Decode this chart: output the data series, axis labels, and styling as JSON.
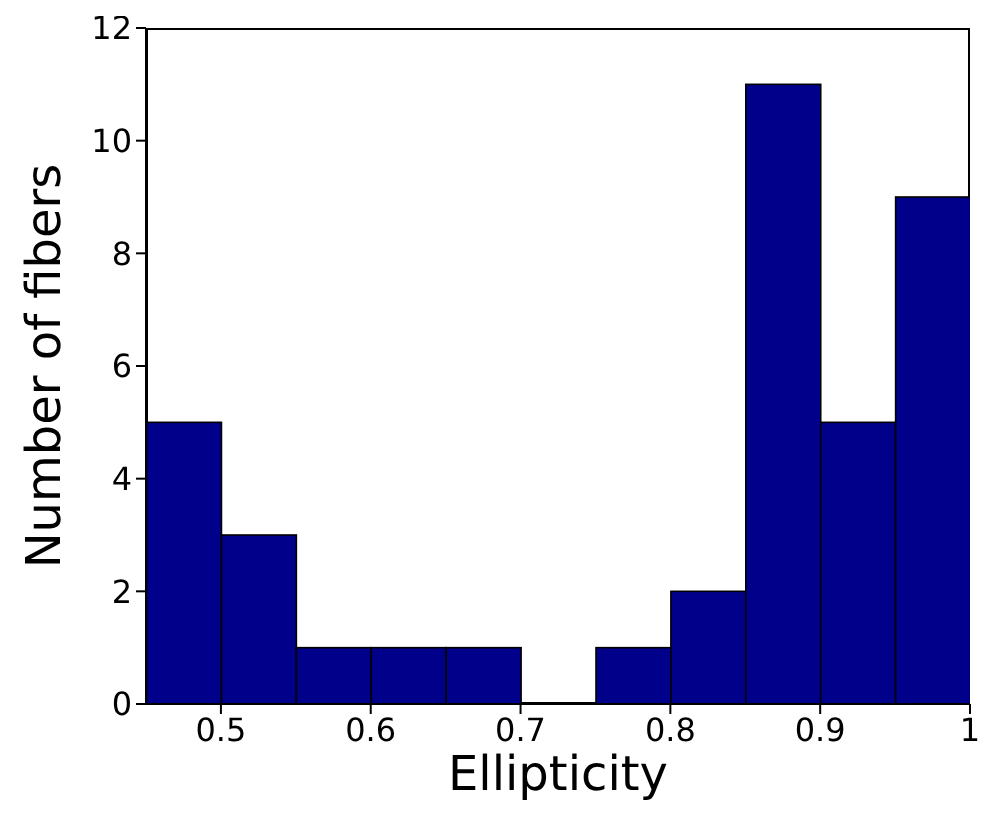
{
  "chart_data": {
    "type": "histogram",
    "xlabel": "Ellipticity",
    "ylabel": "Number of fibers",
    "bins": [
      0.45,
      0.5,
      0.55,
      0.6,
      0.65,
      0.7,
      0.75,
      0.8,
      0.85,
      0.9,
      0.95,
      1
    ],
    "values": [
      5,
      3,
      1,
      1,
      1,
      0,
      1,
      2,
      11,
      5,
      9
    ],
    "color": "#00008b",
    "xlim": [
      0.45,
      1
    ],
    "xticks": [
      0.5,
      0.6,
      0.7,
      0.8,
      0.9,
      1
    ],
    "ylim": [
      0,
      12
    ],
    "yticks": [
      0,
      2,
      4,
      6,
      8,
      10,
      12
    ],
    "grid": false,
    "legend": false
  }
}
